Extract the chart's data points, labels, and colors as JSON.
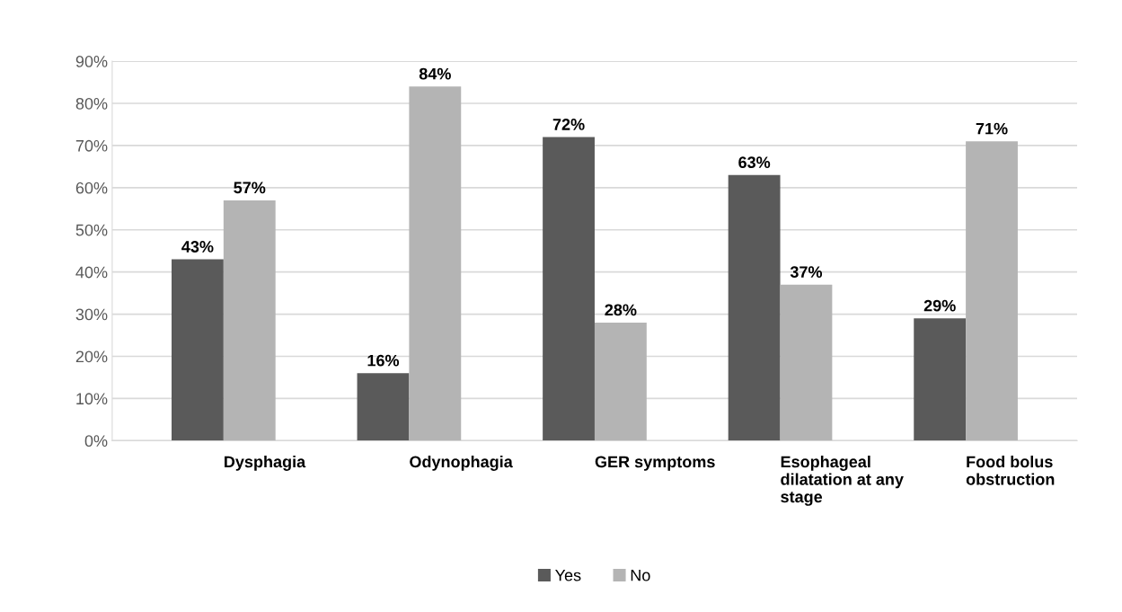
{
  "chart_data": {
    "type": "bar",
    "categories": [
      "Dysphagia",
      "Odynophagia",
      "GER symptoms",
      "Esophageal\ndilatation at any\nstage",
      "Food bolus\nobstruction"
    ],
    "series": [
      {
        "name": "Yes",
        "color": "#5a5a5a",
        "values": [
          43,
          16,
          72,
          63,
          29
        ],
        "value_labels": [
          "43%",
          "16%",
          "72%",
          "63%",
          "29%"
        ]
      },
      {
        "name": "No",
        "color": "#b4b4b4",
        "values": [
          57,
          84,
          28,
          37,
          71
        ],
        "value_labels": [
          "57%",
          "84%",
          "28%",
          "37%",
          "71%"
        ]
      }
    ],
    "ylim": [
      0,
      90
    ],
    "yticks": [
      {
        "value": 0,
        "label": "0%"
      },
      {
        "value": 10,
        "label": "10%"
      },
      {
        "value": 20,
        "label": "20%"
      },
      {
        "value": 30,
        "label": "30%"
      },
      {
        "value": 40,
        "label": "40%"
      },
      {
        "value": 50,
        "label": "50%"
      },
      {
        "value": 60,
        "label": "60%"
      },
      {
        "value": 70,
        "label": "70%"
      },
      {
        "value": 80,
        "label": "80%"
      },
      {
        "value": 90,
        "label": "90%"
      }
    ],
    "grid": "y",
    "legend": "bottom"
  }
}
